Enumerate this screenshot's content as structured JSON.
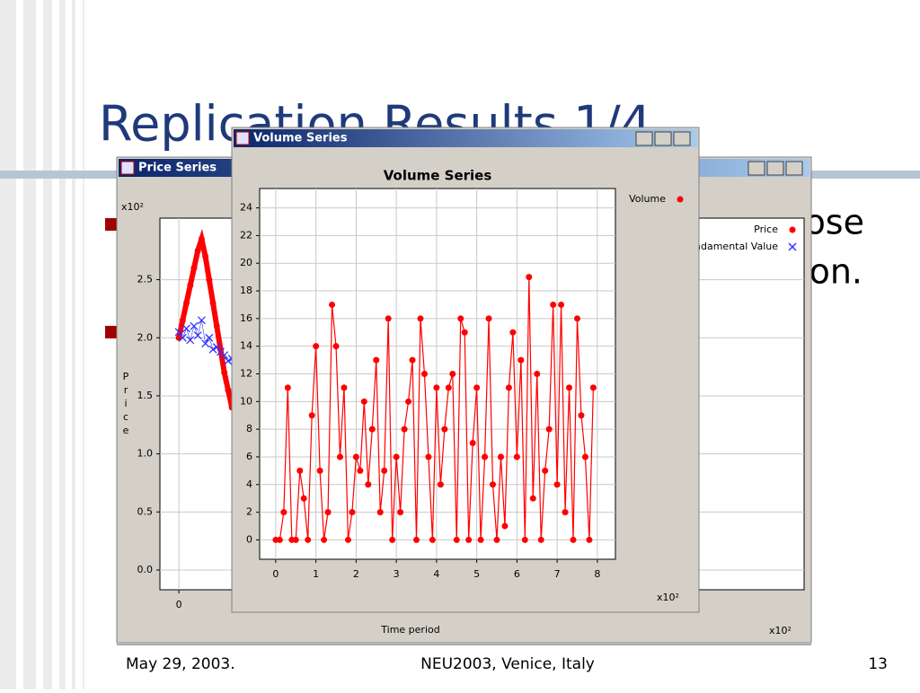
{
  "slide": {
    "title": "Replication Results 1/4",
    "bullets": [
      "ose",
      "on."
    ],
    "footer": {
      "date": "May 29, 2003.",
      "event": "NEU2003, Venice, Italy",
      "page": "13"
    }
  },
  "windows": [
    "Price Series",
    "Volume Series"
  ],
  "chart_data": [
    {
      "type": "line",
      "ylabel": "Price",
      "xlabel": "Time period",
      "y_multiplier": "x10²",
      "x_multiplier": "x10²",
      "x": [
        0,
        0.05,
        0.1,
        0.15,
        0.2,
        0.25,
        0.3,
        0.35,
        0.4,
        0.45,
        0.5,
        0.55,
        0.6,
        0.65,
        0.7
      ],
      "series": [
        {
          "name": "Price",
          "color": "#ff0000",
          "marker": "dot",
          "values": [
            2.0,
            2.15,
            2.3,
            2.45,
            2.6,
            2.75,
            2.85,
            2.7,
            2.5,
            2.3,
            2.1,
            1.9,
            1.7,
            1.55,
            1.4
          ]
        },
        {
          "name": "Fundamental Value",
          "color": "#3333ff",
          "marker": "x",
          "values": [
            2.05,
            2.0,
            2.08,
            1.98,
            2.1,
            2.02,
            2.15,
            1.95,
            2.0,
            1.9,
            1.92,
            1.88,
            1.85,
            1.8,
            1.82
          ]
        }
      ],
      "xlim": [
        -0.25,
        8.25
      ],
      "ylim": [
        -0.17,
        3.03
      ],
      "xticks": [
        0
      ],
      "yticks": [
        {
          "value": 0,
          "label": "0.0"
        },
        {
          "value": 0.5,
          "label": "0.5"
        },
        {
          "value": 1,
          "label": "1.0"
        },
        {
          "value": 1.5,
          "label": "1.5"
        },
        {
          "value": 2,
          "label": "2.0"
        },
        {
          "value": 2.5,
          "label": "2.5"
        }
      ],
      "grid": true
    },
    {
      "type": "line",
      "title": "Volume Series",
      "x_multiplier": "x10²",
      "x": [
        0,
        0.1,
        0.2,
        0.3,
        0.4,
        0.5,
        0.6,
        0.7,
        0.8,
        0.9,
        1.0,
        1.1,
        1.2,
        1.3,
        1.4,
        1.5,
        1.6,
        1.7,
        1.8,
        1.9,
        2.0,
        2.1,
        2.2,
        2.3,
        2.4,
        2.5,
        2.6,
        2.7,
        2.8,
        2.9,
        3.0,
        3.1,
        3.2,
        3.3,
        3.4,
        3.5,
        3.6,
        3.7,
        3.8,
        3.9,
        4.0,
        4.1,
        4.2,
        4.3,
        4.4,
        4.5,
        4.6,
        4.7,
        4.8,
        4.9,
        5.0,
        5.1,
        5.2,
        5.3,
        5.4,
        5.5,
        5.6,
        5.7,
        5.8,
        5.9,
        6.0,
        6.1,
        6.2,
        6.3,
        6.4,
        6.5,
        6.6,
        6.7,
        6.8,
        6.9,
        7.0,
        7.1,
        7.2,
        7.3,
        7.4,
        7.5,
        7.6,
        7.7,
        7.8,
        7.9
      ],
      "series": [
        {
          "name": "Volume",
          "color": "#ff0000",
          "marker": "dot",
          "values": [
            0,
            0,
            2,
            11,
            0,
            0,
            5,
            3,
            0,
            9,
            14,
            5,
            0,
            2,
            17,
            14,
            6,
            11,
            0,
            2,
            6,
            5,
            10,
            4,
            8,
            13,
            2,
            5,
            16,
            0,
            6,
            2,
            8,
            10,
            13,
            0,
            16,
            12,
            6,
            0,
            11,
            4,
            8,
            11,
            12,
            0,
            16,
            15,
            0,
            7,
            11,
            0,
            6,
            16,
            4,
            0,
            6,
            1,
            11,
            15,
            6,
            13,
            0,
            19,
            3,
            12,
            0,
            5,
            8,
            17,
            4,
            17,
            2,
            11,
            0,
            16,
            9,
            6,
            0,
            11
          ]
        }
      ],
      "xlim": [
        -0.4,
        8.45
      ],
      "ylim": [
        -1.4,
        25.4
      ],
      "xticks": [
        0,
        1,
        2,
        3,
        4,
        5,
        6,
        7,
        8
      ],
      "yticks": [
        0,
        2,
        4,
        6,
        8,
        10,
        12,
        14,
        16,
        18,
        20,
        22,
        24
      ],
      "grid": true
    }
  ]
}
